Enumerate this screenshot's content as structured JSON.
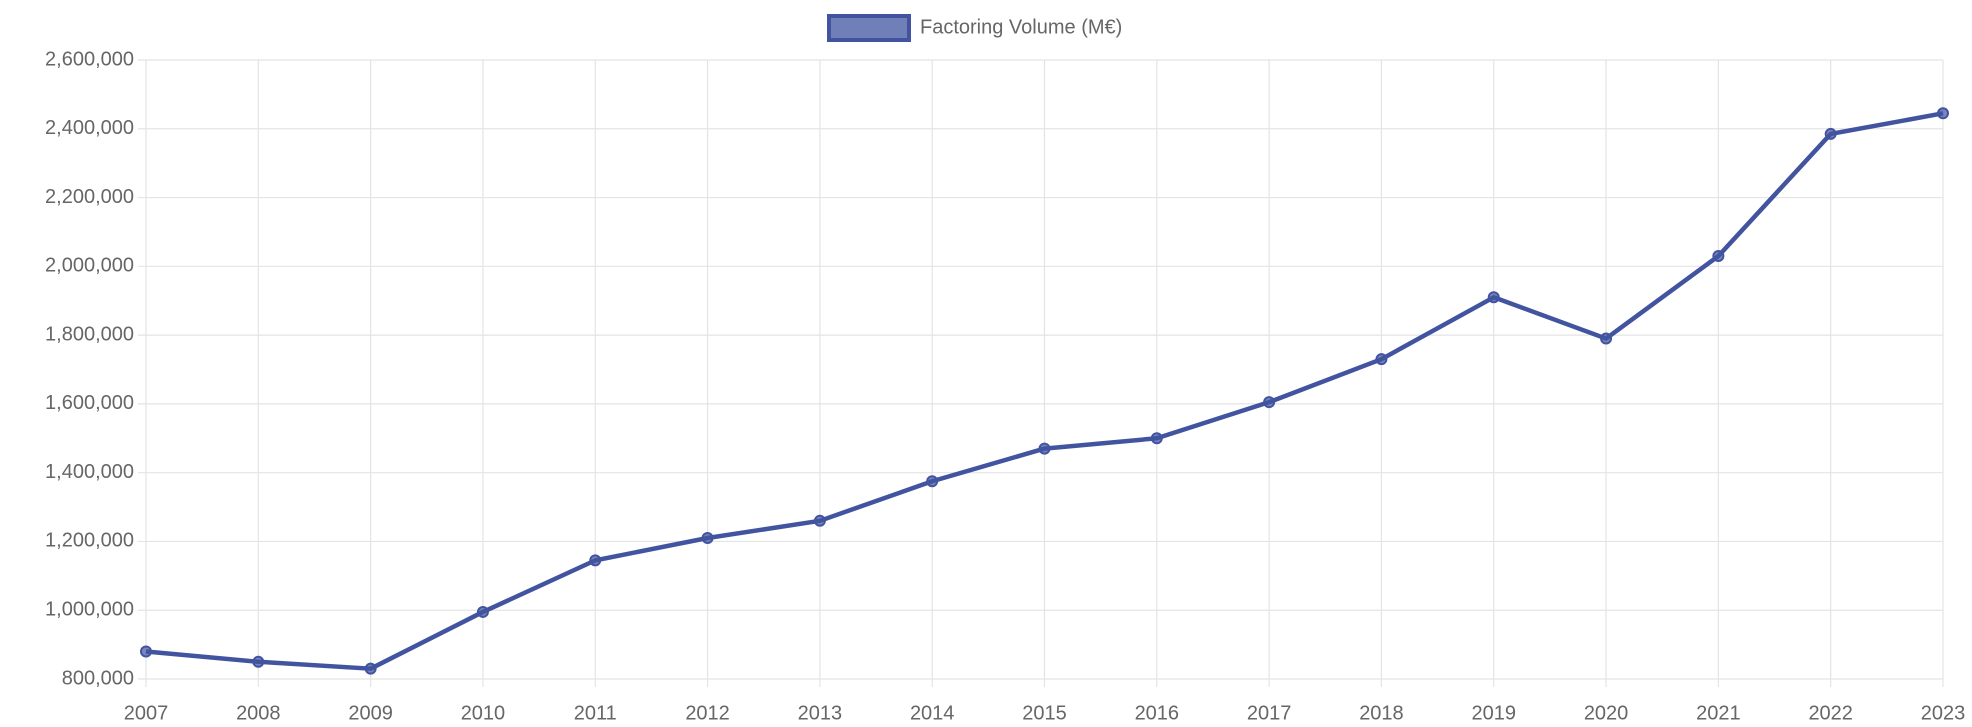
{
  "chart_data": {
    "type": "line",
    "categories": [
      "2007",
      "2008",
      "2009",
      "2010",
      "2011",
      "2012",
      "2013",
      "2014",
      "2015",
      "2016",
      "2017",
      "2018",
      "2019",
      "2020",
      "2021",
      "2022",
      "2023"
    ],
    "series": [
      {
        "name": "Factoring Volume (M€)",
        "color": "#4254a0",
        "values": [
          880000,
          850000,
          830000,
          995000,
          1145000,
          1210000,
          1260000,
          1375000,
          1470000,
          1500000,
          1605000,
          1730000,
          1910000,
          1790000,
          2030000,
          2385000,
          2445000
        ]
      }
    ],
    "ylim": [
      800000,
      2600000
    ],
    "yticks": [
      {
        "value": 800000,
        "label": "800,000"
      },
      {
        "value": 1000000,
        "label": "1,000,000"
      },
      {
        "value": 1200000,
        "label": "1,200,000"
      },
      {
        "value": 1400000,
        "label": "1,400,000"
      },
      {
        "value": 1600000,
        "label": "1,600,000"
      },
      {
        "value": 1800000,
        "label": "1,800,000"
      },
      {
        "value": 2000000,
        "label": "2,000,000"
      },
      {
        "value": 2200000,
        "label": "2,200,000"
      },
      {
        "value": 2400000,
        "label": "2,400,000"
      },
      {
        "value": 2600000,
        "label": "2,600,000"
      }
    ],
    "grid": true,
    "legend": "top"
  }
}
